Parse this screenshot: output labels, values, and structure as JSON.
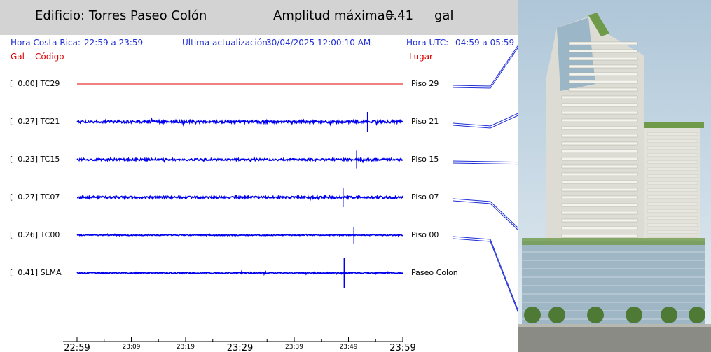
{
  "header": {
    "building_title": "Edificio: Torres Paseo Colón",
    "amplitude_label": "Amplitud máxima=",
    "amplitude_value": "0.41",
    "amplitude_unit": "gal",
    "background": "#d3d3d3"
  },
  "info": {
    "local_time_label": "Hora Costa Rica:",
    "local_time_range": "22:59 a 23:59",
    "update_label": "Ultima actualización:",
    "update_value": "30/04/2025 12:00:10 AM",
    "utc_label": "Hora UTC:",
    "utc_range": "04:59 a 05:59",
    "color": "#1f2fd6"
  },
  "column_headers": {
    "gal": "Gal",
    "code": "Código",
    "place": "Lugar",
    "color": "#e00000"
  },
  "chart_data": {
    "type": "line",
    "title": "",
    "xlabel": "",
    "ylabel": "",
    "x_ticks": [
      "22:59",
      "23:09",
      "23:19",
      "23:29",
      "23:39",
      "23:49",
      "23:59"
    ],
    "series": [
      {
        "code": "TC29",
        "label": "[  0.00] TC29",
        "place": "Piso 29",
        "peak": 0.0,
        "color": "#e00000",
        "noise": 0.0,
        "spike_minute": null,
        "spike_height": 0
      },
      {
        "code": "TC21",
        "label": "[  0.27] TC21",
        "place": "Piso 21",
        "peak": 0.27,
        "color": "#0000ee",
        "noise": 0.35,
        "spike_minute": 53.5,
        "spike_height": 1.0
      },
      {
        "code": "TC15",
        "label": "[  0.23] TC15",
        "place": "Piso 15",
        "peak": 0.23,
        "color": "#0000ee",
        "noise": 0.28,
        "spike_minute": 51.5,
        "spike_height": 0.9
      },
      {
        "code": "TC07",
        "label": "[  0.27] TC07",
        "place": "Piso 07",
        "peak": 0.27,
        "color": "#0000ee",
        "noise": 0.3,
        "spike_minute": 49.0,
        "spike_height": 1.0
      },
      {
        "code": "TC00",
        "label": "[  0.26] TC00",
        "place": "Piso 00",
        "peak": 0.26,
        "color": "#0000ee",
        "noise": 0.14,
        "spike_minute": 51.0,
        "spike_height": 0.85
      },
      {
        "code": "SLMA",
        "label": "[  0.41] SLMA",
        "place": "Paseo Colon",
        "peak": 0.41,
        "color": "#0000ee",
        "noise": 0.16,
        "spike_minute": 49.2,
        "spike_height": 1.5
      }
    ]
  },
  "photo": {
    "icon": "building-photo",
    "sky": "#c6d7e4",
    "facade": "#dcdcd4",
    "glass": "#8fb0c4",
    "greenery": "#6f9a4a"
  }
}
